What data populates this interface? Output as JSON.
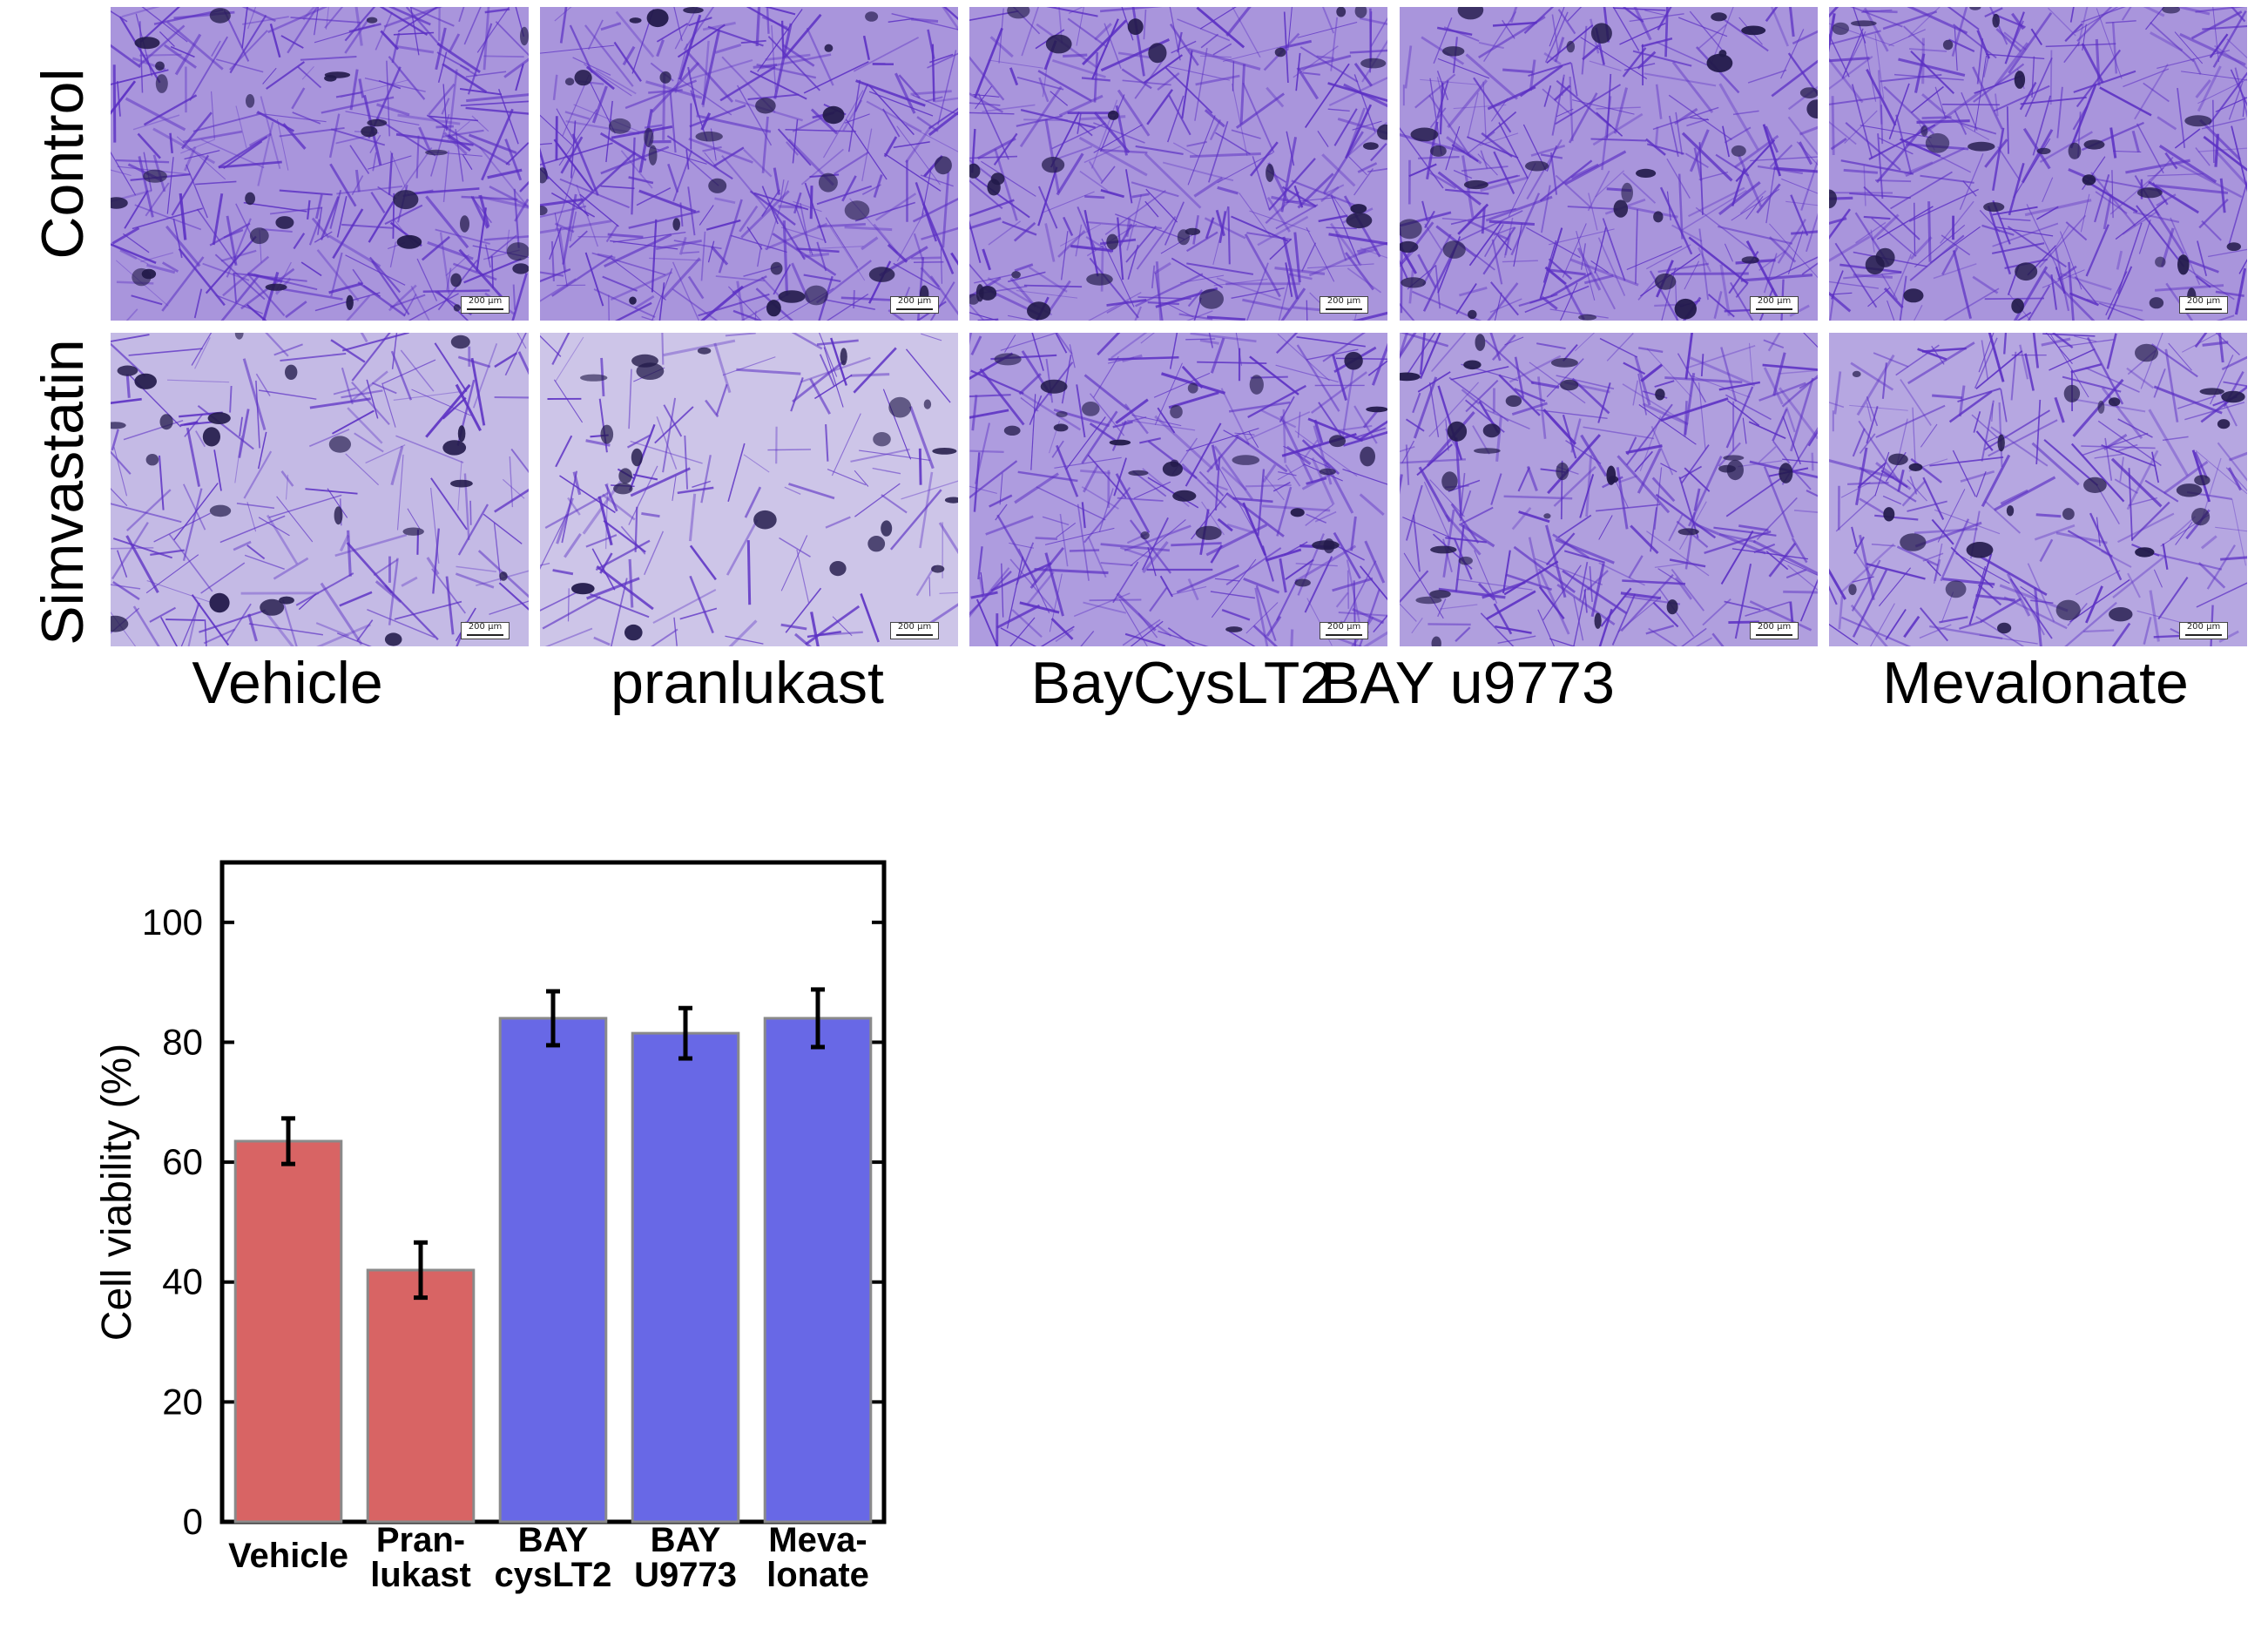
{
  "micrograph_panel": {
    "row_labels": [
      "Control",
      "Simvastatin"
    ],
    "column_labels": [
      "Vehicle",
      "pranlukast",
      "BayCysLT2",
      "BAY u9773",
      "Mevalonate"
    ],
    "scale_bar_label": "200 μm",
    "stain_color": "#5b2fc4",
    "background_color": "#eef0f2"
  },
  "chart_data": {
    "type": "bar",
    "categories": [
      [
        "Vehicle"
      ],
      [
        "Pran-",
        "lukast"
      ],
      [
        "BAY",
        "cysLT2"
      ],
      [
        "BAY",
        "U9773"
      ],
      [
        "Meva-",
        "lonate"
      ]
    ],
    "values": [
      63.5,
      42,
      84,
      81.5,
      84
    ],
    "errors": [
      3.8,
      4.6,
      4.5,
      4.2,
      4.8
    ],
    "bar_colors": [
      "#d86464",
      "#d86464",
      "#6868e6",
      "#6868e6",
      "#6868e6"
    ],
    "ylabel": "Cell viability (%)",
    "ylim": [
      0,
      110
    ],
    "yticks": [
      0,
      20,
      40,
      60,
      80,
      100
    ],
    "grid": false,
    "legend": "none"
  }
}
